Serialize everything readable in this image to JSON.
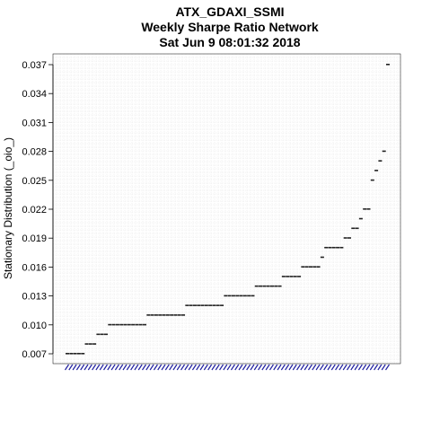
{
  "chart_data": {
    "type": "scatter",
    "title_lines": [
      "ATX_GDAXI_SSMI",
      "Weekly  Sharpe Ratio Network",
      "Sat Jun  9 08:01:32 2018"
    ],
    "xlabel": "",
    "ylabel": "Stationary Distribution (_oio_)",
    "ylim": [
      0.007,
      0.037
    ],
    "yticks": [
      "0.007",
      "0.010",
      "0.013",
      "0.016",
      "0.019",
      "0.022",
      "0.025",
      "0.028",
      "0.031",
      "0.034",
      "0.037"
    ],
    "grid": true,
    "y": [
      0.007,
      0.007,
      0.007,
      0.007,
      0.007,
      0.008,
      0.008,
      0.008,
      0.009,
      0.009,
      0.009,
      0.01,
      0.01,
      0.01,
      0.01,
      0.01,
      0.01,
      0.01,
      0.01,
      0.01,
      0.01,
      0.011,
      0.011,
      0.011,
      0.011,
      0.011,
      0.011,
      0.011,
      0.011,
      0.011,
      0.011,
      0.012,
      0.012,
      0.012,
      0.012,
      0.012,
      0.012,
      0.012,
      0.012,
      0.012,
      0.012,
      0.013,
      0.013,
      0.013,
      0.013,
      0.013,
      0.013,
      0.013,
      0.013,
      0.014,
      0.014,
      0.014,
      0.014,
      0.014,
      0.014,
      0.014,
      0.015,
      0.015,
      0.015,
      0.015,
      0.015,
      0.016,
      0.016,
      0.016,
      0.016,
      0.016,
      0.017,
      0.018,
      0.018,
      0.018,
      0.018,
      0.018,
      0.019,
      0.019,
      0.02,
      0.02,
      0.021,
      0.022,
      0.022,
      0.025,
      0.026,
      0.027,
      0.028,
      0.037
    ]
  }
}
